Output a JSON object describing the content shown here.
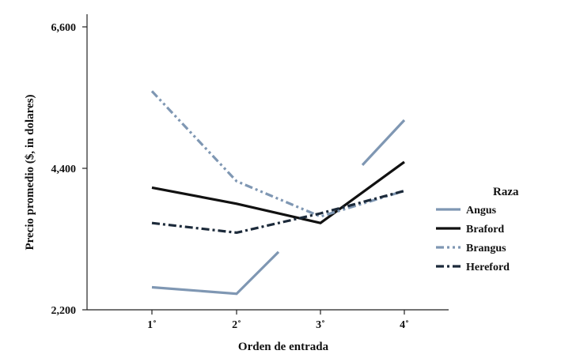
{
  "chart_data": {
    "type": "line",
    "title": "",
    "xlabel": "Orden de entrada",
    "ylabel": "Precio promedio ($, in dolares)",
    "categories": [
      "1˚",
      "2˚",
      "3˚",
      "4˚"
    ],
    "yticks": [
      "6,600",
      "4,400",
      "2,200"
    ],
    "ytick_values": [
      6600,
      4400,
      2200
    ],
    "ylim": [
      2200,
      6600
    ],
    "grid": false,
    "legend": {
      "title": "Raza",
      "placement": "right"
    },
    "series": [
      {
        "name": "Angus",
        "color": "#7f97b3",
        "style": "solid",
        "segments": [
          {
            "x": [
              1,
              2,
              2.5
            ],
            "values": [
              2550,
              2450,
              3100
            ]
          },
          {
            "x": [
              3.5,
              4
            ],
            "values": [
              4450,
              5150
            ]
          }
        ]
      },
      {
        "name": "Braford",
        "color": "#111111",
        "style": "solid",
        "segments": [
          {
            "x": [
              1,
              2,
              3,
              4
            ],
            "values": [
              4100,
              3850,
              3550,
              4500
            ]
          }
        ]
      },
      {
        "name": "Brangus",
        "color": "#7f97b3",
        "style": "dash-dot-dot",
        "segments": [
          {
            "x": [
              1,
              2,
              3,
              4
            ],
            "values": [
              5600,
              4200,
              3650,
              4050
            ]
          }
        ]
      },
      {
        "name": "Hereford",
        "color": "#1c2a3a",
        "style": "dash-dot",
        "segments": [
          {
            "x": [
              1,
              2,
              3,
              4
            ],
            "values": [
              3550,
              3400,
              3700,
              4050
            ]
          }
        ]
      }
    ]
  }
}
